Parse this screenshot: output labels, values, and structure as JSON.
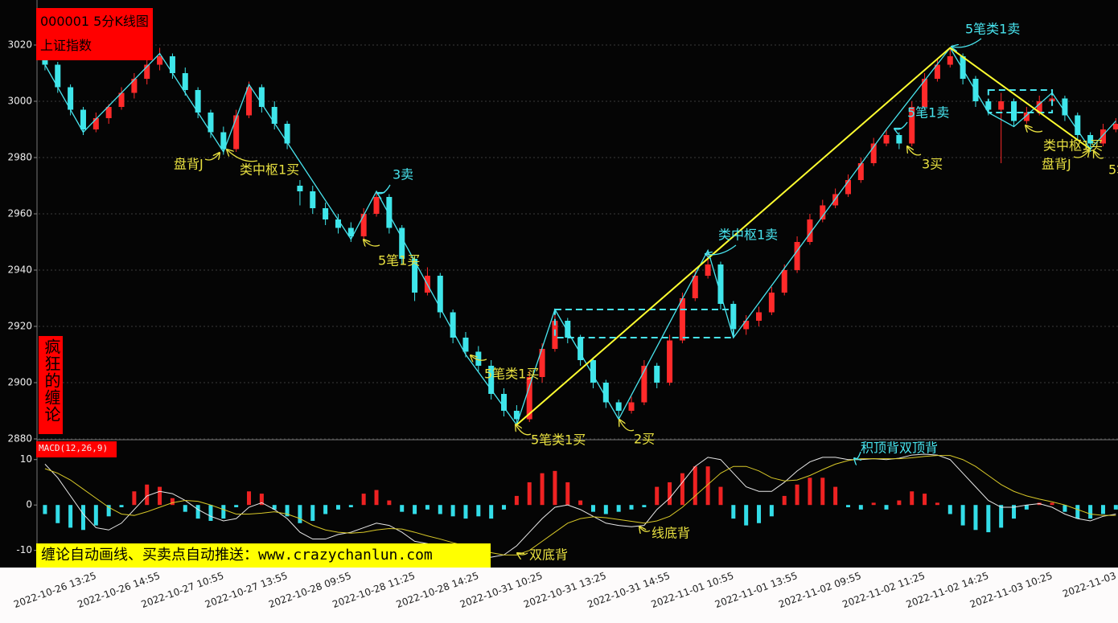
{
  "header": {
    "code_title": "000001 5分K线图",
    "index_name": "上证指数"
  },
  "side_label": "疯狂的缠论",
  "banner": "缠论自动画线、买卖点自动推送：www.crazychanlun.com",
  "chart_data": [
    {
      "type": "candlestick",
      "categories": [
        null,
        null,
        null,
        null,
        "2022-10-26 13:25",
        null,
        null,
        null,
        null,
        "2022-10-26 14:55",
        null,
        null,
        null,
        null,
        "2022-10-27 10:55",
        null,
        null,
        null,
        null,
        "2022-10-27 13:55",
        null,
        null,
        null,
        null,
        "2022-10-28 09:55",
        null,
        null,
        null,
        null,
        "2022-10-28 11:25",
        null,
        null,
        null,
        null,
        "2022-10-28 14:25",
        null,
        null,
        null,
        null,
        "2022-10-31 10:25",
        null,
        null,
        null,
        null,
        "2022-10-31 13:25",
        null,
        null,
        null,
        null,
        "2022-10-31 14:55",
        null,
        null,
        null,
        null,
        "2022-11-01 10:55",
        null,
        null,
        null,
        null,
        "2022-11-01 13:55",
        null,
        null,
        null,
        null,
        "2022-11-02 09:55",
        null,
        null,
        null,
        null,
        "2022-11-02 11:25",
        null,
        null,
        null,
        null,
        "2022-11-02 14:25",
        null,
        null,
        null,
        null,
        "2022-11-03 10:25",
        null,
        null,
        null,
        null,
        "2022-11-03"
      ],
      "open": [
        3016,
        3013,
        3005,
        2997,
        2990,
        2994,
        2998,
        3003,
        3008,
        3013,
        3016,
        3010,
        3004,
        2996,
        2989,
        2983,
        2995,
        3005,
        2998,
        2992,
        2970,
        2968,
        2962,
        2958,
        2955,
        2952,
        2960,
        2966,
        2955,
        2944,
        2932,
        2938,
        2925,
        2916,
        2911,
        2906,
        2896,
        2890,
        2887,
        2902,
        2912,
        2922,
        2916,
        2908,
        2900,
        2893,
        2890,
        2893,
        2906,
        2900,
        2915,
        2930,
        2938,
        2942,
        2928,
        2919,
        2922,
        2925,
        2932,
        2940,
        2950,
        2958,
        2963,
        2967,
        2972,
        2978,
        2985,
        2988,
        2985,
        2998,
        3008,
        3013,
        3016,
        3008,
        3000,
        2997,
        3000,
        2993,
        2996,
        3000,
        3001,
        2995,
        2988,
        2985,
        2990
      ],
      "high": [
        3018,
        3014,
        3006,
        2998,
        2996,
        2999,
        3005,
        3010,
        3015,
        3019,
        3017,
        3012,
        3005,
        2997,
        2991,
        2997,
        3007,
        3006,
        3000,
        2993,
        2972,
        2970,
        2964,
        2960,
        2957,
        2962,
        2968,
        2967,
        2956,
        2945,
        2941,
        2939,
        2926,
        2918,
        2913,
        2908,
        2898,
        2892,
        2904,
        2914,
        2926,
        2923,
        2917,
        2909,
        2901,
        2894,
        2895,
        2908,
        2907,
        2917,
        2932,
        2940,
        2947,
        2943,
        2929,
        2924,
        2927,
        2934,
        2942,
        2952,
        2960,
        2965,
        2969,
        2974,
        2980,
        2987,
        2990,
        2989,
        3000,
        3010,
        3015,
        3019,
        3017,
        3009,
        3001,
        3003,
        3001,
        2998,
        3002,
        3003,
        3002,
        2996,
        2989,
        2992,
        2994
      ],
      "low": [
        3011,
        3003,
        2995,
        2988,
        2989,
        2992,
        2997,
        3001,
        3006,
        3011,
        3008,
        3002,
        2994,
        2987,
        2981,
        2982,
        2994,
        2996,
        2990,
        2983,
        2963,
        2960,
        2956,
        2953,
        2950,
        2951,
        2959,
        2953,
        2942,
        2929,
        2931,
        2923,
        2914,
        2909,
        2904,
        2894,
        2888,
        2885,
        2886,
        2900,
        2911,
        2914,
        2906,
        2898,
        2891,
        2887,
        2889,
        2892,
        2898,
        2899,
        2914,
        2929,
        2937,
        2926,
        2916,
        2917,
        2920,
        2924,
        2931,
        2939,
        2949,
        2957,
        2962,
        2966,
        2971,
        2977,
        2984,
        2983,
        2984,
        2997,
        3007,
        3012,
        3006,
        2998,
        2995,
        2978,
        2991,
        2992,
        2995,
        2999,
        2993,
        2986,
        2982,
        2984,
        2989
      ],
      "close": [
        3013,
        3005,
        2997,
        2990,
        2994,
        2998,
        3003,
        3008,
        3013,
        3016,
        3010,
        3004,
        2996,
        2989,
        2983,
        2995,
        3005,
        2998,
        2992,
        2985,
        2968,
        2962,
        2958,
        2955,
        2952,
        2960,
        2966,
        2955,
        2944,
        2932,
        2938,
        2925,
        2916,
        2911,
        2906,
        2896,
        2890,
        2887,
        2902,
        2912,
        2922,
        2916,
        2908,
        2900,
        2893,
        2890,
        2893,
        2906,
        2900,
        2915,
        2930,
        2938,
        2942,
        2928,
        2919,
        2922,
        2925,
        2932,
        2940,
        2950,
        2958,
        2963,
        2967,
        2972,
        2978,
        2985,
        2988,
        2985,
        2998,
        3008,
        3013,
        3016,
        3008,
        3000,
        2997,
        3000,
        2993,
        2996,
        3000,
        3001,
        2995,
        2988,
        2985,
        2990,
        2992
      ],
      "up_color": "#ff2a2a",
      "down_color": "#3ee6ea",
      "ylim": [
        2880,
        3036
      ],
      "yticks": [
        2880,
        2900,
        2920,
        2940,
        2960,
        2980,
        3000,
        3020
      ],
      "grid": true,
      "strokes": {
        "color": "#48e4ee",
        "points": [
          [
            0,
            3013
          ],
          [
            3,
            2989
          ],
          [
            9,
            3017
          ],
          [
            14,
            2982
          ],
          [
            16,
            3006
          ],
          [
            24,
            2951
          ],
          [
            26,
            2968
          ],
          [
            33,
            2910
          ],
          [
            37,
            2885
          ],
          [
            40,
            2926
          ],
          [
            45,
            2887
          ],
          [
            52,
            2947
          ],
          [
            54,
            2916
          ],
          [
            66,
            2990
          ],
          [
            71,
            3019
          ],
          [
            74,
            2996
          ],
          [
            76,
            2991
          ],
          [
            79,
            3003
          ],
          [
            82,
            2983
          ],
          [
            84,
            2993
          ]
        ]
      },
      "segments": {
        "color": "#ffff30",
        "points": [
          [
            37,
            2885
          ],
          [
            71,
            3019
          ],
          [
            82,
            2983
          ]
        ]
      },
      "pivots": {
        "color": "#48e4ee",
        "boxes": [
          {
            "x": [
              40,
              54
            ],
            "y": [
              2916,
              2926
            ]
          },
          {
            "x": [
              74,
              79
            ],
            "y": [
              2996,
              3004
            ]
          }
        ]
      },
      "annotations": [
        {
          "text": "盘背J",
          "color": "#e8e040"
        },
        {
          "text": "类中枢1买",
          "color": "#e8e040"
        },
        {
          "text": "3卖",
          "color": "#48e4ee"
        },
        {
          "text": "5笔1买",
          "color": "#e8e040"
        },
        {
          "text": "5笔类1买",
          "color": "#e8e040"
        },
        {
          "text": "5笔类1买",
          "color": "#e8e040"
        },
        {
          "text": "2买",
          "color": "#e8e040"
        },
        {
          "text": "类中枢1卖",
          "color": "#48e4ee"
        },
        {
          "text": "5笔类1卖",
          "color": "#48e4ee"
        },
        {
          "text": "5笔1卖",
          "color": "#48e4ee"
        },
        {
          "text": "3买",
          "color": "#e8e040"
        },
        {
          "text": "类中枢1买",
          "color": "#e8e040"
        },
        {
          "text": "盘背J",
          "color": "#e8e040"
        },
        {
          "text": "5笔",
          "color": "#e8e040"
        }
      ]
    },
    {
      "type": "macd",
      "title": "MACD(12,26,9)",
      "ylim": [
        -13.6,
        14.2
      ],
      "yticks": [
        -10,
        0,
        10
      ],
      "histogram": [
        -2,
        -4,
        -5,
        -5.5,
        -4.5,
        -2.5,
        -0.5,
        3,
        4.5,
        4,
        1.5,
        -1.5,
        -3,
        -3.5,
        -3,
        -0.5,
        3,
        2.5,
        -1,
        -2.5,
        -4,
        -3.5,
        -2,
        -1,
        -0.5,
        2.5,
        3.3,
        1,
        -1.5,
        -2,
        -1,
        -2,
        -2.5,
        -3,
        -2.5,
        -3,
        -1,
        2,
        5,
        7,
        7.5,
        5,
        1,
        -1.5,
        -2,
        -1.5,
        -1,
        -0.5,
        4,
        5,
        7,
        8.5,
        8.5,
        4,
        -3,
        -4.5,
        -4,
        -2.5,
        2,
        4.5,
        6,
        6,
        4,
        -0.5,
        -1,
        0.5,
        -1,
        1,
        3,
        2.5,
        0.5,
        -2,
        -4.5,
        -5.5,
        -6,
        -5,
        -3,
        -1,
        0.5,
        0.5,
        -1.5,
        -3,
        -3,
        -2,
        -1
      ],
      "dif": [
        9,
        6,
        2,
        -2,
        -5,
        -5.5,
        -4,
        -1,
        2,
        3,
        2.5,
        1,
        -1,
        -2.5,
        -3.5,
        -3,
        -0.5,
        0.5,
        -1,
        -3,
        -6,
        -7.5,
        -7.5,
        -6.5,
        -6,
        -5,
        -4,
        -4.5,
        -6,
        -8,
        -8.5,
        -9.5,
        -10.5,
        -11,
        -11.5,
        -11.5,
        -11,
        -9,
        -6,
        -3,
        -0.5,
        0,
        -1,
        -2.5,
        -4,
        -4.5,
        -4.8,
        -4.5,
        -1,
        1.5,
        5,
        8.5,
        10.5,
        10,
        7,
        4,
        3,
        3,
        5,
        7.5,
        9.5,
        10.5,
        10.5,
        10,
        10,
        10.2,
        10,
        10.3,
        11,
        11.2,
        11,
        10,
        7,
        4,
        1,
        -0.5,
        -0.5,
        0,
        0.3,
        -0.5,
        -2,
        -3,
        -3.5,
        -2.5,
        -2
      ],
      "dea": [
        8,
        7,
        5.5,
        3.5,
        1.5,
        -0.5,
        -2,
        -2.3,
        -1.5,
        -0.5,
        0.5,
        1,
        0.8,
        0,
        -1,
        -2,
        -2,
        -1.8,
        -1.5,
        -2,
        -3,
        -4.5,
        -5.5,
        -6,
        -6.2,
        -6,
        -5.5,
        -5.2,
        -5.3,
        -6,
        -6.8,
        -7.5,
        -8.3,
        -9,
        -9.8,
        -10.5,
        -11,
        -11,
        -10,
        -8,
        -6,
        -4,
        -3,
        -2.6,
        -2.8,
        -3.2,
        -3.6,
        -4,
        -3.5,
        -2.5,
        -0.5,
        2,
        4.5,
        7,
        8.5,
        8.5,
        7.5,
        6,
        5.3,
        5.5,
        6.5,
        7.8,
        9,
        9.8,
        10.2,
        10.2,
        10.2,
        10.2,
        10.4,
        10.7,
        10.9,
        10.9,
        10,
        8.5,
        6.5,
        4.5,
        3,
        2,
        1.3,
        0.7,
        0,
        -1,
        -2,
        -2.3,
        -2.3
      ],
      "up_color": "#ee2222",
      "down_color": "#33dde8",
      "dif_color": "#e8e8e8",
      "dea_color": "#d8c828",
      "annotations": [
        {
          "text": "积顶背双顶背",
          "color": "#48e4ee"
        },
        {
          "text": "线底背",
          "color": "#e8e040"
        },
        {
          "text": "双底背",
          "color": "#e8e040"
        }
      ]
    }
  ]
}
